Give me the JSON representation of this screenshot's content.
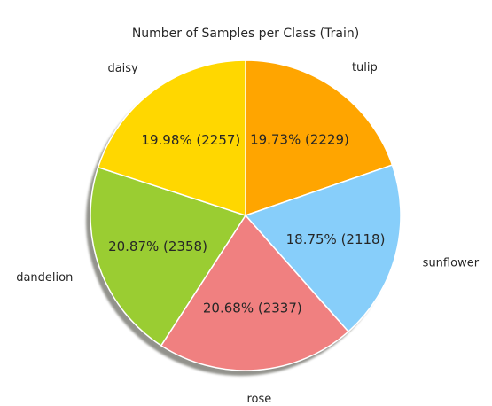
{
  "chart_data": {
    "type": "pie",
    "title": "Number of Samples per Class (Train)",
    "slices": [
      {
        "label": "tulip",
        "value": 2229,
        "percent_label": "19.73%  (2229)",
        "color": "#FFA500"
      },
      {
        "label": "sunflower",
        "value": 2118,
        "percent_label": "18.75%  (2118)",
        "color": "#87CEFA"
      },
      {
        "label": "rose",
        "value": 2337,
        "percent_label": "20.68%  (2337)",
        "color": "#F08080"
      },
      {
        "label": "dandelion",
        "value": 2358,
        "percent_label": "20.87%  (2358)",
        "color": "#9ACD32"
      },
      {
        "label": "daisy",
        "value": 2257,
        "percent_label": "19.98%  (2257)",
        "color": "#FFD700"
      }
    ],
    "start_angle": "90 degrees, clockwise",
    "shadow": true,
    "legend": "none"
  }
}
